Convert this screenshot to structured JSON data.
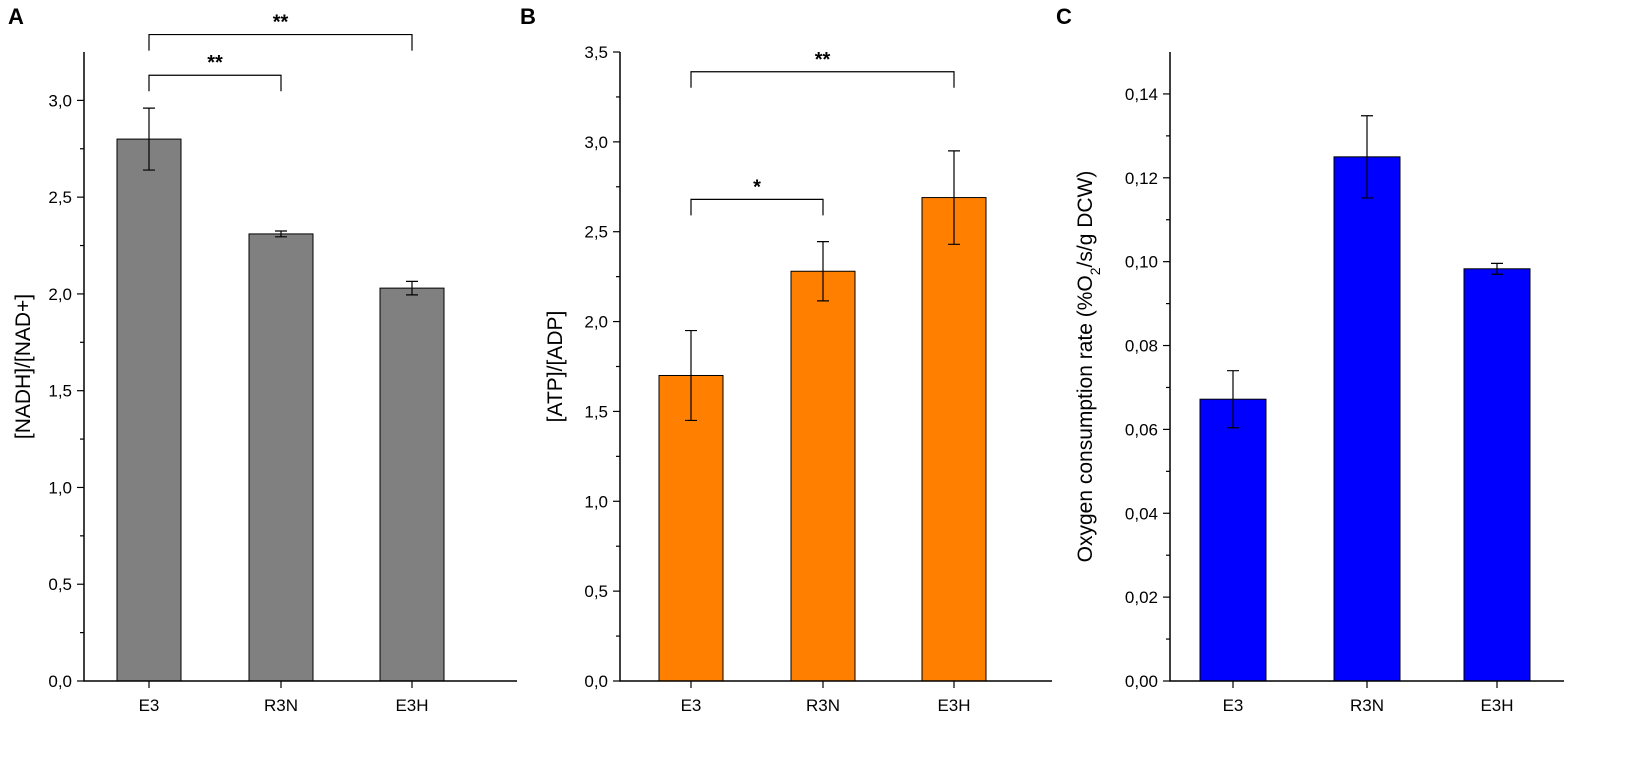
{
  "chart_data": [
    {
      "type": "bar",
      "panel": "A",
      "categories": [
        "E3",
        "R3N",
        "E3H"
      ],
      "values": [
        2.8,
        2.31,
        2.03
      ],
      "errors": [
        0.16,
        0.015,
        0.035
      ],
      "ylabel": "[NADH]/[NAD+]",
      "ylim": [
        0,
        3.25
      ],
      "yticks": [
        0.0,
        0.5,
        1.0,
        1.5,
        2.0,
        2.5,
        3.0
      ],
      "ytick_labels": [
        "0,0",
        "0,5",
        "1,0",
        "1,5",
        "2,0",
        "2,5",
        "3,0"
      ],
      "color": "#808080",
      "significance": [
        {
          "from": 0,
          "to": 1,
          "label": "**",
          "y": 3.13
        },
        {
          "from": 0,
          "to": 2,
          "label": "**",
          "y": 3.34
        }
      ]
    },
    {
      "type": "bar",
      "panel": "B",
      "categories": [
        "E3",
        "R3N",
        "E3H"
      ],
      "values": [
        1.7,
        2.28,
        2.69
      ],
      "errors": [
        0.25,
        0.165,
        0.26
      ],
      "ylabel": "[ATP]/[ADP]",
      "ylim": [
        0,
        3.5
      ],
      "yticks": [
        0.0,
        0.5,
        1.0,
        1.5,
        2.0,
        2.5,
        3.0,
        3.5
      ],
      "ytick_labels": [
        "0,0",
        "0,5",
        "1,0",
        "1,5",
        "2,0",
        "2,5",
        "3,0",
        "3,5"
      ],
      "color": "#ff8000",
      "significance": [
        {
          "from": 0,
          "to": 1,
          "label": "*",
          "y": 2.68
        },
        {
          "from": 0,
          "to": 2,
          "label": "**",
          "y": 3.39
        }
      ]
    },
    {
      "type": "bar",
      "panel": "C",
      "categories": [
        "E3",
        "R3N",
        "E3H"
      ],
      "values": [
        0.0672,
        0.125,
        0.0983
      ],
      "errors": [
        0.0068,
        0.0098,
        0.0013
      ],
      "ylabel_prefix": "Oxygen consumption rate (%O",
      "ylabel_sub": "2",
      "ylabel_suffix": "/s/g DCW)",
      "ylim": [
        0,
        0.15
      ],
      "yticks": [
        0.0,
        0.02,
        0.04,
        0.06,
        0.08,
        0.1,
        0.12,
        0.14
      ],
      "ytick_labels": [
        "0,00",
        "0,02",
        "0,04",
        "0,06",
        "0,08",
        "0,10",
        "0,12",
        "0,14"
      ],
      "color": "#0000ff",
      "significance": []
    }
  ]
}
